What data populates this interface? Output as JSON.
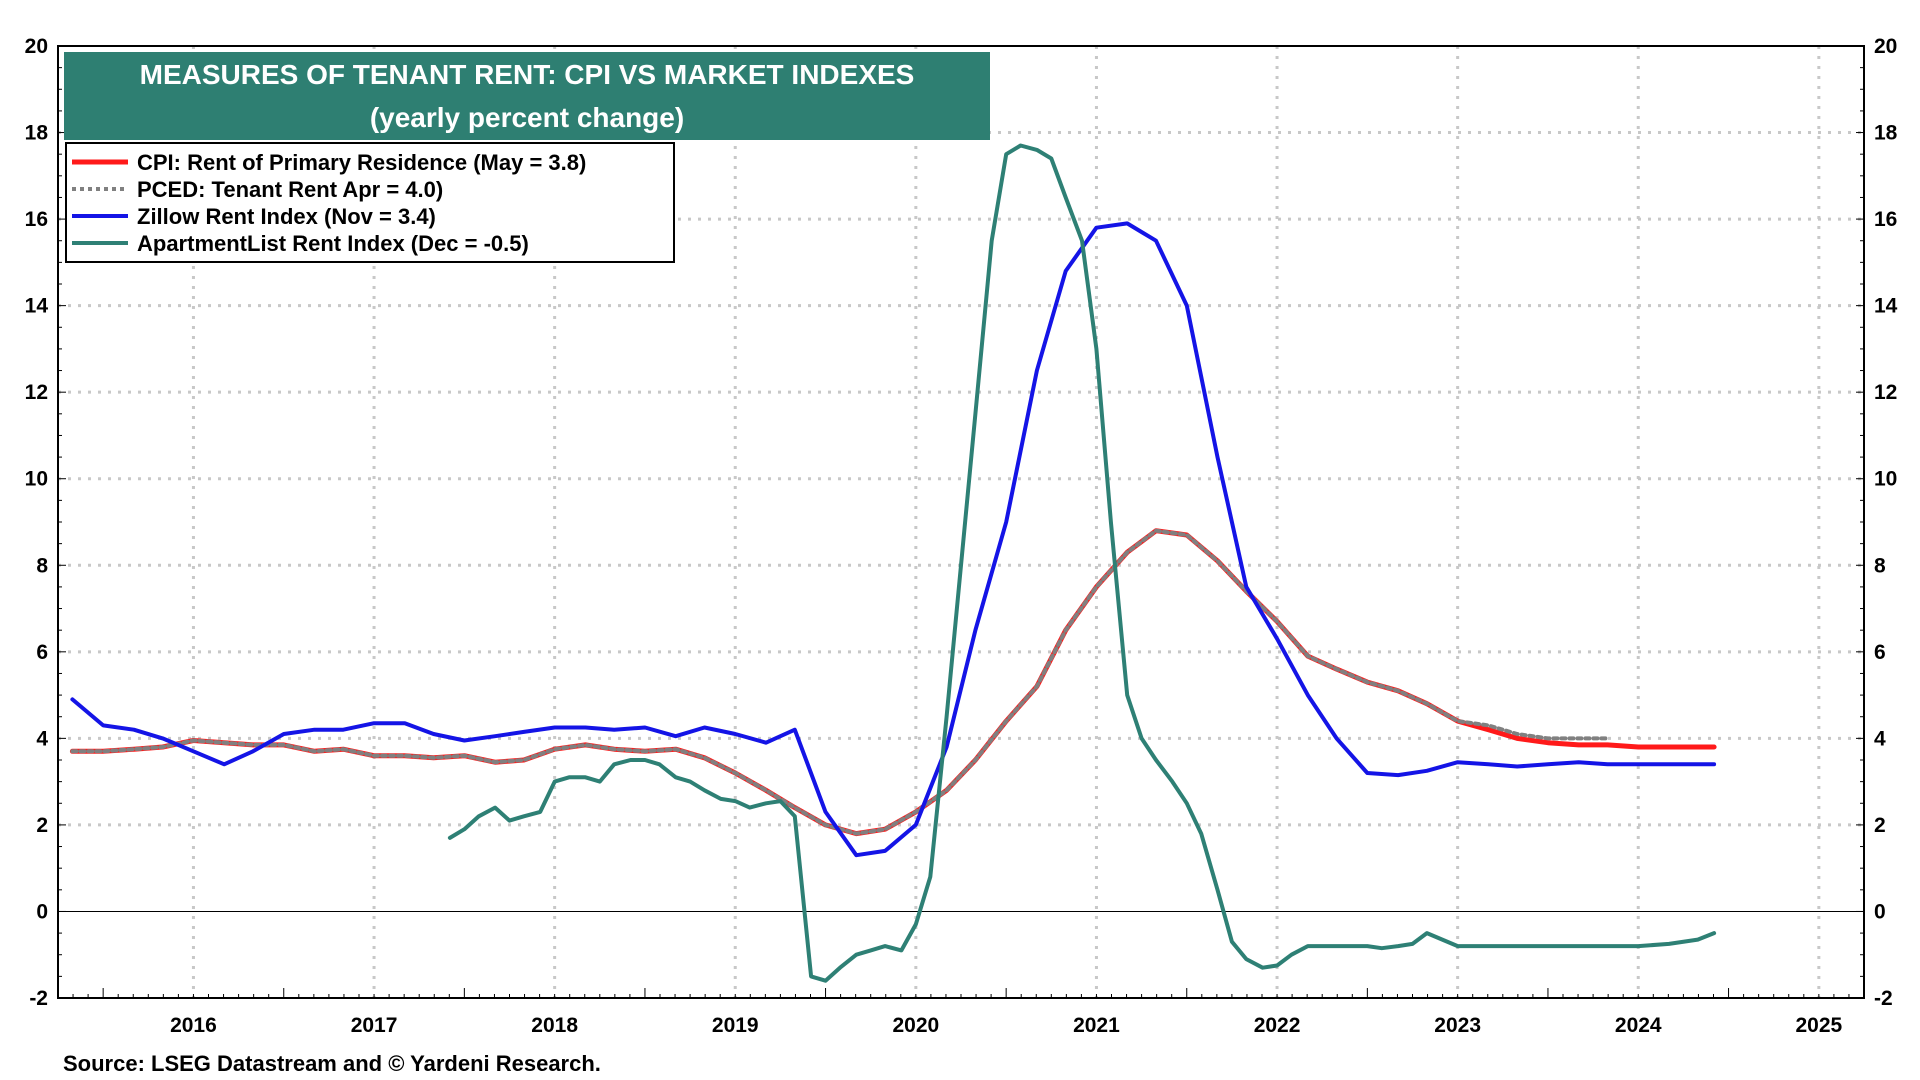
{
  "chart_data": {
    "type": "line",
    "title": "MEASURES OF TENANT RENT: CPI VS MARKET INDEXES",
    "subtitle": "(yearly percent change)",
    "source": "Source: LSEG Datastream and © Yardeni Research.",
    "y_ticks": [
      "20",
      "18",
      "16",
      "14",
      "12",
      "10",
      "8",
      "6",
      "4",
      "2",
      "0",
      "-2"
    ],
    "ylim": [
      -2,
      20
    ],
    "xlim": [
      2015.75,
      2025.75
    ],
    "x_ticks": [
      "2016",
      "2017",
      "2018",
      "2019",
      "2020",
      "2021",
      "2022",
      "2023",
      "2024",
      "2025"
    ],
    "grid": true,
    "legend_position": "top-left",
    "colors": {
      "cpi": "#ff1a1a",
      "pced": "#808080",
      "zillow": "#1414e6",
      "apartment": "#2e8075",
      "title_box": "#2e7f72"
    },
    "series": [
      {
        "key": "cpi",
        "name": "CPI: Rent of Primary Residence (May = 3.8)",
        "x": [
          2015.83,
          2016.0,
          2016.17,
          2016.33,
          2016.5,
          2016.67,
          2016.83,
          2017.0,
          2017.17,
          2017.33,
          2017.5,
          2017.67,
          2017.83,
          2018.0,
          2018.17,
          2018.33,
          2018.5,
          2018.67,
          2018.83,
          2019.0,
          2019.17,
          2019.33,
          2019.5,
          2019.67,
          2019.83,
          2020.0,
          2020.17,
          2020.33,
          2020.5,
          2020.67,
          2020.83,
          2021.0,
          2021.17,
          2021.33,
          2021.5,
          2021.67,
          2021.83,
          2022.0,
          2022.17,
          2022.33,
          2022.5,
          2022.67,
          2022.83,
          2023.0,
          2023.17,
          2023.33,
          2023.5,
          2023.67,
          2023.83,
          2024.0,
          2024.17,
          2024.33,
          2024.5,
          2024.67,
          2024.83,
          2024.92
        ],
        "y": [
          3.7,
          3.7,
          3.75,
          3.8,
          3.95,
          3.9,
          3.85,
          3.85,
          3.7,
          3.75,
          3.6,
          3.6,
          3.55,
          3.6,
          3.45,
          3.5,
          3.75,
          3.85,
          3.75,
          3.7,
          3.75,
          3.55,
          3.2,
          2.8,
          2.4,
          2.0,
          1.8,
          1.9,
          2.3,
          2.8,
          3.5,
          4.4,
          5.2,
          6.5,
          7.5,
          8.3,
          8.8,
          8.7,
          8.1,
          7.4,
          6.7,
          5.9,
          5.6,
          5.3,
          5.1,
          4.8,
          4.4,
          4.2,
          4.0,
          3.9,
          3.85,
          3.85,
          3.8,
          3.8,
          3.8,
          3.8
        ]
      },
      {
        "key": "pced",
        "name": "PCED: Tenant Rent Apr = 4.0)",
        "x": [
          2015.83,
          2016.0,
          2016.17,
          2016.33,
          2016.5,
          2016.67,
          2016.83,
          2017.0,
          2017.17,
          2017.33,
          2017.5,
          2017.67,
          2017.83,
          2018.0,
          2018.17,
          2018.33,
          2018.5,
          2018.67,
          2018.83,
          2019.0,
          2019.17,
          2019.33,
          2019.5,
          2019.67,
          2019.83,
          2020.0,
          2020.17,
          2020.33,
          2020.5,
          2020.67,
          2020.83,
          2021.0,
          2021.17,
          2021.33,
          2021.5,
          2021.67,
          2021.83,
          2022.0,
          2022.17,
          2022.33,
          2022.5,
          2022.67,
          2022.83,
          2023.0,
          2023.17,
          2023.33,
          2023.5,
          2023.67,
          2023.83,
          2024.0,
          2024.17,
          2024.33
        ],
        "y": [
          3.7,
          3.7,
          3.75,
          3.8,
          3.95,
          3.9,
          3.85,
          3.85,
          3.7,
          3.75,
          3.6,
          3.6,
          3.55,
          3.6,
          3.45,
          3.5,
          3.75,
          3.85,
          3.75,
          3.7,
          3.75,
          3.55,
          3.2,
          2.8,
          2.4,
          2.0,
          1.8,
          1.9,
          2.3,
          2.8,
          3.5,
          4.4,
          5.2,
          6.5,
          7.5,
          8.3,
          8.8,
          8.7,
          8.1,
          7.4,
          6.7,
          5.9,
          5.6,
          5.3,
          5.1,
          4.8,
          4.4,
          4.3,
          4.1,
          4.0,
          4.0,
          4.0
        ]
      },
      {
        "key": "zillow",
        "name": "Zillow Rent Index (Nov = 3.4)",
        "x": [
          2015.83,
          2016.0,
          2016.17,
          2016.33,
          2016.5,
          2016.67,
          2016.83,
          2017.0,
          2017.17,
          2017.33,
          2017.5,
          2017.67,
          2017.83,
          2018.0,
          2018.17,
          2018.33,
          2018.5,
          2018.67,
          2018.83,
          2019.0,
          2019.17,
          2019.33,
          2019.5,
          2019.67,
          2019.83,
          2020.0,
          2020.17,
          2020.33,
          2020.5,
          2020.67,
          2020.83,
          2021.0,
          2021.17,
          2021.33,
          2021.5,
          2021.67,
          2021.83,
          2022.0,
          2022.17,
          2022.33,
          2022.5,
          2022.67,
          2022.83,
          2023.0,
          2023.17,
          2023.33,
          2023.5,
          2023.67,
          2023.83,
          2024.0,
          2024.17,
          2024.33,
          2024.5,
          2024.67,
          2024.83,
          2024.92
        ],
        "y": [
          4.9,
          4.3,
          4.2,
          4.0,
          3.7,
          3.4,
          3.7,
          4.1,
          4.2,
          4.2,
          4.35,
          4.35,
          4.1,
          3.95,
          4.05,
          4.15,
          4.25,
          4.25,
          4.2,
          4.25,
          4.05,
          4.25,
          4.1,
          3.9,
          4.2,
          2.3,
          1.3,
          1.4,
          2.0,
          3.8,
          6.5,
          9.0,
          12.5,
          14.8,
          15.8,
          15.9,
          15.5,
          14.0,
          10.5,
          7.5,
          6.3,
          5.0,
          4.0,
          3.2,
          3.15,
          3.25,
          3.45,
          3.4,
          3.35,
          3.4,
          3.45,
          3.4,
          3.4,
          3.4,
          3.4,
          3.4
        ]
      },
      {
        "key": "apartment",
        "name": "ApartmentList Rent Index (Dec = -0.5)",
        "x": [
          2017.92,
          2018.0,
          2018.08,
          2018.17,
          2018.25,
          2018.33,
          2018.42,
          2018.5,
          2018.58,
          2018.67,
          2018.75,
          2018.83,
          2018.92,
          2019.0,
          2019.08,
          2019.17,
          2019.25,
          2019.33,
          2019.42,
          2019.5,
          2019.58,
          2019.67,
          2019.75,
          2019.83,
          2019.92,
          2020.0,
          2020.08,
          2020.17,
          2020.25,
          2020.33,
          2020.42,
          2020.5,
          2020.58,
          2020.67,
          2020.75,
          2020.83,
          2020.92,
          2021.0,
          2021.08,
          2021.17,
          2021.25,
          2021.33,
          2021.42,
          2021.5,
          2021.58,
          2021.67,
          2021.75,
          2021.83,
          2021.92,
          2022.0,
          2022.08,
          2022.17,
          2022.25,
          2022.33,
          2022.42,
          2022.5,
          2022.58,
          2022.67,
          2022.75,
          2022.83,
          2022.92,
          2023.0,
          2023.08,
          2023.17,
          2023.25,
          2023.33,
          2023.5,
          2023.67,
          2023.83,
          2024.0,
          2024.17,
          2024.33,
          2024.5,
          2024.67,
          2024.83,
          2024.92
        ],
        "y": [
          1.7,
          1.9,
          2.2,
          2.4,
          2.1,
          2.2,
          2.3,
          3.0,
          3.1,
          3.1,
          3.0,
          3.4,
          3.5,
          3.5,
          3.4,
          3.1,
          3.0,
          2.8,
          2.6,
          2.55,
          2.4,
          2.5,
          2.55,
          2.2,
          -1.5,
          -1.6,
          -1.3,
          -1.0,
          -0.9,
          -0.8,
          -0.9,
          -0.3,
          0.8,
          4.5,
          8.0,
          11.5,
          15.5,
          17.5,
          17.7,
          17.6,
          17.4,
          16.5,
          15.5,
          13.0,
          9.0,
          5.0,
          4.0,
          3.5,
          3.0,
          2.5,
          1.8,
          0.5,
          -0.7,
          -1.1,
          -1.3,
          -1.25,
          -1.0,
          -0.8,
          -0.8,
          -0.8,
          -0.8,
          -0.8,
          -0.85,
          -0.8,
          -0.75,
          -0.5,
          -0.8,
          -0.8,
          -0.8,
          -0.8,
          -0.8,
          -0.8,
          -0.8,
          -0.75,
          -0.65,
          -0.5
        ]
      }
    ]
  }
}
